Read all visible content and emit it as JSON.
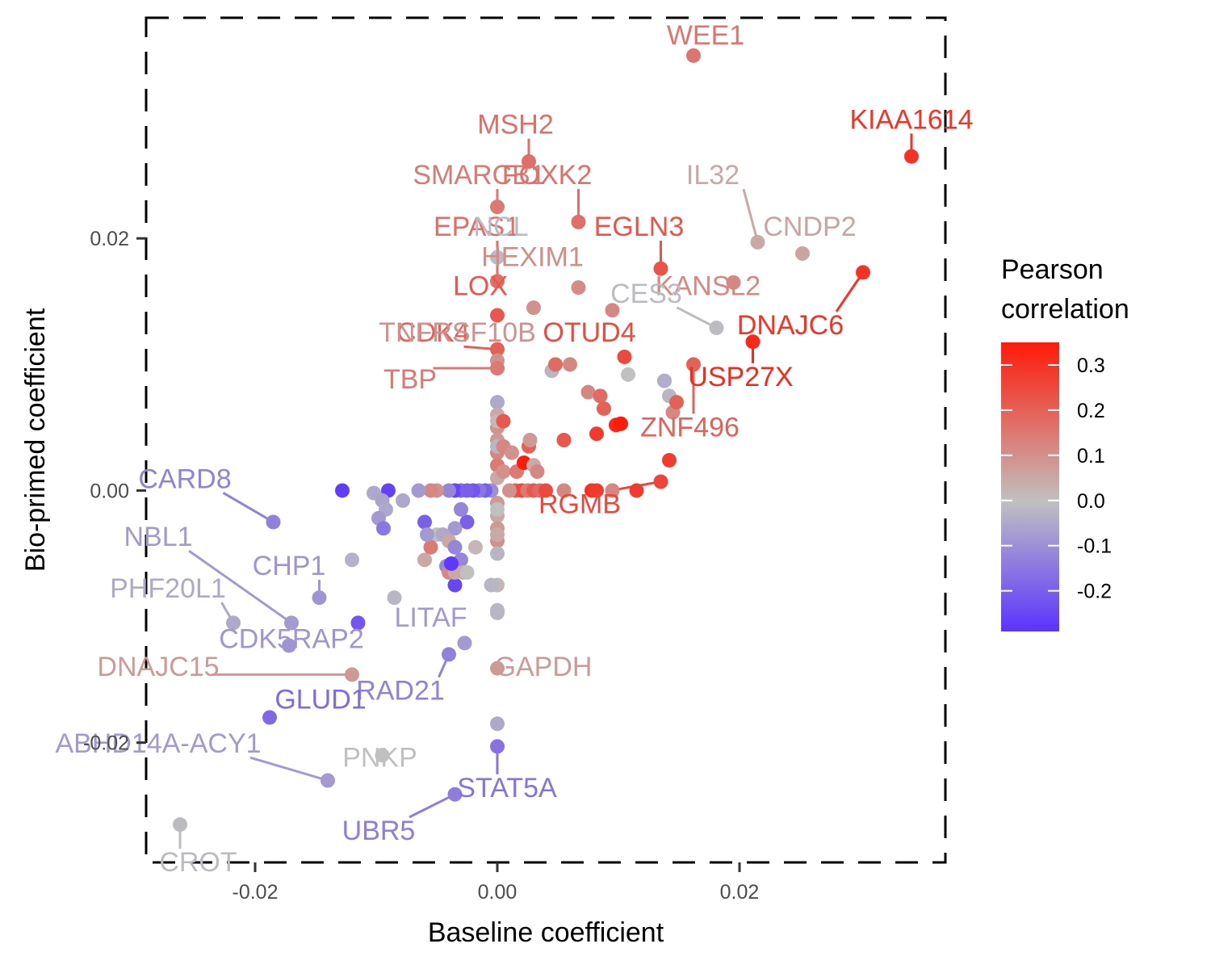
{
  "chart_data": {
    "type": "scatter",
    "title": "",
    "xlabel": "Baseline coefficient",
    "ylabel": "Bio-primed coefficient",
    "xlim": [
      -0.029,
      0.037
    ],
    "ylim": [
      -0.0295,
      0.0375
    ],
    "x_ticks": [
      -0.02,
      0.0,
      0.02
    ],
    "x_tick_labels": [
      "-0.02",
      "0.00",
      "0.02"
    ],
    "y_ticks": [
      -0.02,
      0.0,
      0.02
    ],
    "y_tick_labels": [
      "-0.02",
      "0.00",
      "0.02"
    ],
    "grid": false,
    "panel_border": "dashed",
    "legend": {
      "title_line1": "Pearson",
      "title_line2": "correlation",
      "placement": "right",
      "range": [
        -0.29,
        0.35
      ],
      "ticks": [
        0.3,
        0.2,
        0.1,
        0.0,
        -0.1,
        -0.2
      ],
      "tick_labels": [
        "0.3",
        "0.2",
        "0.1",
        "0.0",
        "-0.1",
        "-0.2"
      ],
      "colors": {
        "low": "#5a33ff",
        "mid": "#c0c0c0",
        "high": "#ff1a0a"
      }
    },
    "labeled_points": [
      {
        "gene": "WEE1",
        "x": 0.0162,
        "y": 0.0345,
        "r": 0.16,
        "lx": 0.0172,
        "ly": 0.0354
      },
      {
        "gene": "KIAA1614",
        "x": 0.0342,
        "y": 0.0265,
        "r": 0.3,
        "lx": 0.0342,
        "ly": 0.0287
      },
      {
        "gene": "MSH2",
        "x": 0.0026,
        "y": 0.0261,
        "r": 0.17,
        "lx": 0.0015,
        "ly": 0.0283
      },
      {
        "gene": "SMARCB1",
        "x": 0.0,
        "y": 0.0225,
        "r": 0.15,
        "lx": -0.0015,
        "ly": 0.0243
      },
      {
        "gene": "FOXK2",
        "x": 0.0067,
        "y": 0.0213,
        "r": 0.17,
        "lx": 0.0041,
        "ly": 0.0243
      },
      {
        "gene": "IL32",
        "x": 0.0215,
        "y": 0.0197,
        "r": 0.05,
        "lx": 0.0178,
        "ly": 0.0243
      },
      {
        "gene": "EPAS1",
        "x": 0.0,
        "y": 0.0166,
        "r": 0.17,
        "lx": -0.0017,
        "ly": 0.0202
      },
      {
        "gene": "NCL",
        "x": 0.0,
        "y": 0.0185,
        "r": -0.01,
        "lx": 0.0003,
        "ly": 0.0202
      },
      {
        "gene": "EGLN3",
        "x": 0.0135,
        "y": 0.0176,
        "r": 0.23,
        "lx": 0.0117,
        "ly": 0.0202
      },
      {
        "gene": "CNDP2",
        "x": 0.0252,
        "y": 0.0188,
        "r": 0.06,
        "lx": 0.0258,
        "ly": 0.0202
      },
      {
        "gene": "HEXIM1",
        "x": 0.0067,
        "y": 0.0161,
        "r": 0.11,
        "lx": 0.0029,
        "ly": 0.0178
      },
      {
        "gene": "LOX",
        "x": 0.0,
        "y": 0.0139,
        "r": 0.22,
        "lx": -0.0014,
        "ly": 0.0155
      },
      {
        "gene": "KANSL2",
        "x": 0.0195,
        "y": 0.0165,
        "r": 0.12,
        "lx": 0.0174,
        "ly": 0.0155
      },
      {
        "gene": "CES3",
        "x": 0.0181,
        "y": 0.0129,
        "r": -0.01,
        "lx": 0.0123,
        "ly": 0.0149
      },
      {
        "gene": "DNAJC6",
        "x": 0.0302,
        "y": 0.0173,
        "r": 0.3,
        "lx": 0.0242,
        "ly": 0.0124
      },
      {
        "gene": "CDK4",
        "x": 0.0,
        "y": 0.0112,
        "r": 0.2,
        "lx": -0.0053,
        "ly": 0.0118
      },
      {
        "gene": "TNFRSF10B",
        "x": 0.0,
        "y": 0.0103,
        "r": 0.1,
        "lx": -0.0033,
        "ly": 0.0118
      },
      {
        "gene": "OTUD4",
        "x": 0.0105,
        "y": 0.0106,
        "r": 0.25,
        "lx": 0.0076,
        "ly": 0.0118
      },
      {
        "gene": "USP27X",
        "x": 0.0211,
        "y": 0.0118,
        "r": 0.32,
        "lx": 0.0201,
        "ly": 0.0083
      },
      {
        "gene": "TBP",
        "x": 0.0,
        "y": 0.0097,
        "r": 0.15,
        "lx": -0.0072,
        "ly": 0.0081
      },
      {
        "gene": "ZNF496",
        "x": 0.0162,
        "y": 0.01,
        "r": 0.2,
        "lx": 0.0159,
        "ly": 0.0043
      },
      {
        "gene": "RGMB",
        "x": 0.0135,
        "y": 0.0007,
        "r": 0.26,
        "lx": 0.0068,
        "ly": -0.0018
      },
      {
        "gene": "CARD8",
        "x": -0.0185,
        "y": -0.0025,
        "r": -0.13,
        "lx": -0.0258,
        "ly": 0.0002
      },
      {
        "gene": "NBL1",
        "x": -0.017,
        "y": -0.0105,
        "r": -0.08,
        "lx": -0.028,
        "ly": -0.0044
      },
      {
        "gene": "CHP1",
        "x": -0.0147,
        "y": -0.0085,
        "r": -0.09,
        "lx": -0.0172,
        "ly": -0.0067
      },
      {
        "gene": "PHF20L1",
        "x": -0.0218,
        "y": -0.0105,
        "r": -0.05,
        "lx": -0.0272,
        "ly": -0.0085
      },
      {
        "gene": "LITAF",
        "x": -0.0027,
        "y": -0.0121,
        "r": -0.08,
        "lx": -0.0055,
        "ly": -0.0108
      },
      {
        "gene": "CDK5RAP2",
        "x": -0.0172,
        "y": -0.0123,
        "r": -0.09,
        "lx": -0.017,
        "ly": -0.0125
      },
      {
        "gene": "DNAJC15",
        "x": -0.012,
        "y": -0.0146,
        "r": 0.08,
        "lx": -0.028,
        "ly": -0.0147
      },
      {
        "gene": "GAPDH",
        "x": 0.0,
        "y": -0.0141,
        "r": 0.08,
        "lx": 0.0038,
        "ly": -0.0147
      },
      {
        "gene": "RAD21",
        "x": -0.004,
        "y": -0.013,
        "r": -0.13,
        "lx": -0.008,
        "ly": -0.0166
      },
      {
        "gene": "GLUD1",
        "x": -0.0188,
        "y": -0.018,
        "r": -0.18,
        "lx": -0.0146,
        "ly": -0.0173
      },
      {
        "gene": "ABHD14A-ACY1",
        "x": -0.014,
        "y": -0.023,
        "r": -0.08,
        "lx": -0.028,
        "ly": -0.0208
      },
      {
        "gene": "PNKP",
        "x": -0.0095,
        "y": -0.021,
        "r": 0.0,
        "lx": -0.0097,
        "ly": -0.0219
      },
      {
        "gene": "STAT5A",
        "x": 0.0,
        "y": -0.0203,
        "r": -0.16,
        "lx": 0.0008,
        "ly": -0.0243
      },
      {
        "gene": "UBR5",
        "x": -0.0035,
        "y": -0.0241,
        "r": -0.14,
        "lx": -0.0098,
        "ly": -0.0277
      },
      {
        "gene": "CROT",
        "x": -0.0262,
        "y": -0.0265,
        "r": -0.01,
        "lx": -0.0247,
        "ly": -0.0302
      }
    ],
    "points": [
      {
        "x": 0.0,
        "y": 0.007,
        "r": -0.05
      },
      {
        "x": 0.0,
        "y": 0.006,
        "r": 0.05
      },
      {
        "x": 0.0,
        "y": 0.005,
        "r": 0.1
      },
      {
        "x": 0.0,
        "y": 0.004,
        "r": 0.08
      },
      {
        "x": 0.0,
        "y": 0.003,
        "r": 0.12
      },
      {
        "x": 0.0,
        "y": 0.002,
        "r": 0.15
      },
      {
        "x": 0.0,
        "y": 0.001,
        "r": 0.05
      },
      {
        "x": 0.0,
        "y": 0.0055,
        "r": 0.02
      },
      {
        "x": 0.0,
        "y": 0.0035,
        "r": -0.02
      },
      {
        "x": 0.0005,
        "y": 0.0055,
        "r": 0.22
      },
      {
        "x": 0.0005,
        "y": 0.0035,
        "r": 0.12
      },
      {
        "x": 0.0005,
        "y": 0.0015,
        "r": 0.1
      },
      {
        "x": 0.0,
        "y": -0.001,
        "r": 0.08
      },
      {
        "x": 0.0,
        "y": -0.002,
        "r": 0.05
      },
      {
        "x": 0.0,
        "y": -0.003,
        "r": 0.08
      },
      {
        "x": 0.0,
        "y": -0.004,
        "r": 0.1
      },
      {
        "x": 0.0,
        "y": -0.005,
        "r": -0.02
      },
      {
        "x": 0.0,
        "y": -0.0015,
        "r": 0.0
      },
      {
        "x": 0.0,
        "y": -0.0035,
        "r": 0.05
      },
      {
        "x": 0.0,
        "y": -0.0075,
        "r": 0.02
      },
      {
        "x": 0.0,
        "y": -0.0095,
        "r": -0.02
      },
      {
        "x": -0.0005,
        "y": -0.0075,
        "r": -0.02
      },
      {
        "x": 0.0,
        "y": -0.0185,
        "r": -0.05
      },
      {
        "x": 0.0012,
        "y": 0.003,
        "r": 0.1
      },
      {
        "x": 0.0016,
        "y": 0.0015,
        "r": 0.15
      },
      {
        "x": 0.0022,
        "y": 0.0022,
        "r": 0.35
      },
      {
        "x": 0.0026,
        "y": 0.0035,
        "r": 0.2
      },
      {
        "x": 0.0027,
        "y": 0.004,
        "r": 0.08
      },
      {
        "x": 0.003,
        "y": 0.002,
        "r": 0.05
      },
      {
        "x": 0.0033,
        "y": 0.0015,
        "r": 0.12
      },
      {
        "x": 0.0045,
        "y": 0.0095,
        "r": -0.02
      },
      {
        "x": 0.0048,
        "y": 0.01,
        "r": 0.18
      },
      {
        "x": 0.0055,
        "y": 0.004,
        "r": 0.22
      },
      {
        "x": 0.006,
        "y": 0.01,
        "r": 0.12
      },
      {
        "x": 0.003,
        "y": 0.0145,
        "r": 0.1
      },
      {
        "x": 0.0075,
        "y": 0.0078,
        "r": 0.12
      },
      {
        "x": 0.0082,
        "y": 0.0045,
        "r": 0.28
      },
      {
        "x": 0.0085,
        "y": 0.0075,
        "r": 0.18
      },
      {
        "x": 0.0088,
        "y": 0.0065,
        "r": 0.2
      },
      {
        "x": 0.0095,
        "y": 0.0143,
        "r": 0.12
      },
      {
        "x": 0.0098,
        "y": 0.0052,
        "r": 0.32
      },
      {
        "x": 0.0102,
        "y": 0.0053,
        "r": 0.35
      },
      {
        "x": 0.0108,
        "y": 0.0092,
        "r": 0.0
      },
      {
        "x": 0.0138,
        "y": 0.0087,
        "r": -0.04
      },
      {
        "x": 0.0142,
        "y": 0.0075,
        "r": -0.02
      },
      {
        "x": 0.0145,
        "y": 0.0062,
        "r": 0.12
      },
      {
        "x": 0.0148,
        "y": 0.007,
        "r": 0.2
      },
      {
        "x": 0.0142,
        "y": 0.0024,
        "r": 0.28
      },
      {
        "x": 0.0015,
        "y": 0.0,
        "r": 0.2
      },
      {
        "x": 0.002,
        "y": 0.0,
        "r": 0.25
      },
      {
        "x": 0.0025,
        "y": 0.0,
        "r": 0.15
      },
      {
        "x": 0.003,
        "y": 0.0,
        "r": 0.22
      },
      {
        "x": 0.0035,
        "y": 0.0,
        "r": 0.18
      },
      {
        "x": 0.004,
        "y": 0.0,
        "r": 0.25
      },
      {
        "x": 0.0055,
        "y": 0.0,
        "r": 0.12
      },
      {
        "x": 0.0078,
        "y": 0.0,
        "r": 0.3
      },
      {
        "x": 0.0082,
        "y": 0.0,
        "r": 0.28
      },
      {
        "x": 0.0095,
        "y": 0.0,
        "r": 0.12
      },
      {
        "x": 0.0115,
        "y": 0.0,
        "r": 0.28
      },
      {
        "x": 0.001,
        "y": 0.0,
        "r": 0.1
      },
      {
        "x": -0.0005,
        "y": 0.0,
        "r": -0.1
      },
      {
        "x": -0.001,
        "y": 0.0,
        "r": -0.2
      },
      {
        "x": -0.0015,
        "y": 0.0,
        "r": -0.15
      },
      {
        "x": -0.002,
        "y": 0.0,
        "r": -0.22
      },
      {
        "x": -0.003,
        "y": 0.0,
        "r": -0.18
      },
      {
        "x": -0.0035,
        "y": 0.0,
        "r": -0.25
      },
      {
        "x": -0.004,
        "y": 0.0,
        "r": -0.12
      },
      {
        "x": -0.005,
        "y": 0.0,
        "r": 0.1
      },
      {
        "x": -0.0055,
        "y": 0.0,
        "r": 0.12
      },
      {
        "x": -0.0065,
        "y": 0.0,
        "r": -0.08
      },
      {
        "x": -0.009,
        "y": 0.0,
        "r": -0.26
      },
      {
        "x": -0.0102,
        "y": -0.0002,
        "r": -0.05
      },
      {
        "x": -0.0128,
        "y": 0.0,
        "r": -0.27
      },
      {
        "x": -0.0025,
        "y": 0.0,
        "r": -0.2
      },
      {
        "x": -0.0025,
        "y": -0.0025,
        "r": -0.2
      },
      {
        "x": -0.003,
        "y": -0.0015,
        "r": -0.12
      },
      {
        "x": -0.0035,
        "y": -0.003,
        "r": -0.08
      },
      {
        "x": -0.005,
        "y": -0.0035,
        "r": 0.0
      },
      {
        "x": -0.0055,
        "y": -0.0045,
        "r": 0.15
      },
      {
        "x": -0.006,
        "y": -0.0025,
        "r": -0.2
      },
      {
        "x": -0.0058,
        "y": -0.0035,
        "r": -0.08
      },
      {
        "x": -0.006,
        "y": -0.0055,
        "r": 0.05
      },
      {
        "x": -0.0045,
        "y": -0.0035,
        "r": -0.05
      },
      {
        "x": -0.004,
        "y": -0.004,
        "r": 0.05
      },
      {
        "x": -0.0035,
        "y": -0.0045,
        "r": -0.12
      },
      {
        "x": -0.003,
        "y": -0.0055,
        "r": -0.12
      },
      {
        "x": -0.0028,
        "y": -0.0065,
        "r": 0.05
      },
      {
        "x": -0.0035,
        "y": -0.0075,
        "r": -0.25
      },
      {
        "x": -0.0018,
        "y": -0.0045,
        "r": 0.02
      },
      {
        "x": -0.0042,
        "y": -0.006,
        "r": -0.12
      },
      {
        "x": -0.004,
        "y": -0.0065,
        "r": 0.12
      },
      {
        "x": -0.0035,
        "y": -0.0065,
        "r": 0.05
      },
      {
        "x": -0.0038,
        "y": -0.0058,
        "r": -0.28
      },
      {
        "x": -0.0025,
        "y": -0.0065,
        "r": 0.0
      },
      {
        "x": -0.0095,
        "y": -0.0008,
        "r": -0.06
      },
      {
        "x": -0.0092,
        "y": -0.0015,
        "r": -0.05
      },
      {
        "x": -0.0098,
        "y": -0.0022,
        "r": -0.08
      },
      {
        "x": -0.0094,
        "y": -0.003,
        "r": -0.15
      },
      {
        "x": -0.0078,
        "y": -0.0008,
        "r": -0.05
      },
      {
        "x": -0.0085,
        "y": -0.0085,
        "r": -0.02
      },
      {
        "x": -0.012,
        "y": -0.0055,
        "r": -0.03
      },
      {
        "x": -0.0115,
        "y": -0.0105,
        "r": -0.22
      },
      {
        "x": 0.0,
        "y": -0.0097,
        "r": -0.02
      }
    ]
  }
}
